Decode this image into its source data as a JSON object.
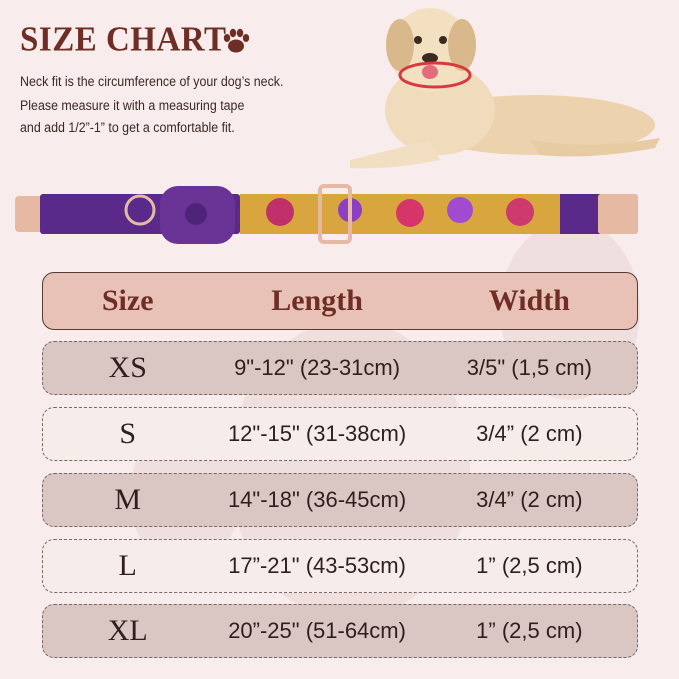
{
  "header": {
    "title": "SIZE CHART",
    "icon": "paw-icon",
    "description": [
      "Neck fit is the circumference of your dog’s neck.",
      "Please measure it with a measuring tape",
      " and add 1/2”-1” to get a comfortable fit."
    ]
  },
  "images": {
    "dog": "labrador-wearing-red-collar",
    "collar": "purple-floral-collar-with-airtag-holder"
  },
  "colors": {
    "title": "#6e2e26",
    "header_bg": "#e8c2b7",
    "row_dark": "#dac7c4",
    "row_light": "#f6ecea",
    "background": "#f8ecec"
  },
  "table": {
    "columns": [
      "Size",
      "Length",
      "Width"
    ],
    "rows": [
      {
        "size": "XS",
        "length": "9\"-12\" (23-31cm)",
        "width": "3/5\" (1,5 cm)"
      },
      {
        "size": "S",
        "length": "12\"-15\" (31-38cm)",
        "width": "3/4” (2 cm)"
      },
      {
        "size": "M",
        "length": "14\"-18\" (36-45cm)",
        "width": "3/4” (2 cm)"
      },
      {
        "size": "L",
        "length": "17”-21\" (43-53cm)",
        "width": "1”  (2,5 cm)"
      },
      {
        "size": "XL",
        "length": "20”-25\" (51-64cm)",
        "width": "1”  (2,5 cm)"
      }
    ]
  }
}
